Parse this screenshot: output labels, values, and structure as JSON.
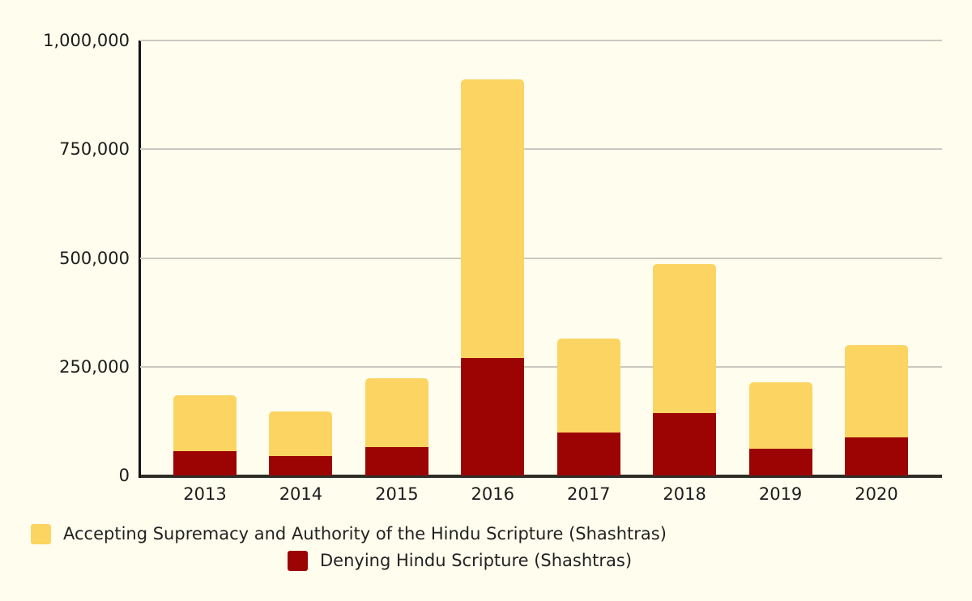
{
  "page": {
    "background_color": "#FFFDEE",
    "text_color": "#1C1C1C",
    "gridline_color": "#C9C9C1",
    "axis_line_color": "#141414",
    "baseline_color": "#2E2E26"
  },
  "chart_data": {
    "type": "bar",
    "stacked": true,
    "title": "",
    "xlabel": "",
    "ylabel": "",
    "categories": [
      "2013",
      "2014",
      "2015",
      "2016",
      "2017",
      "2018",
      "2019",
      "2020"
    ],
    "series": [
      {
        "name": "Accepting Supremacy and Authority of the Hindu Scripture (Shashtras)",
        "color": "#FCD462",
        "values": [
          130000,
          103000,
          158000,
          640000,
          217000,
          342000,
          152000,
          211000
        ]
      },
      {
        "name": "Denying Hindu Scripture (Shashtras)",
        "color": "#9C0404",
        "values": [
          55000,
          44000,
          66000,
          270000,
          98000,
          144000,
          62000,
          88000
        ]
      }
    ],
    "stack_totals": [
      185000,
      147000,
      224000,
      910000,
      315000,
      486000,
      214000,
      299000
    ],
    "ylim": [
      0,
      1000000
    ],
    "yticks": [
      "1,000,000",
      "750,000",
      "500,000",
      "250,000",
      "0"
    ],
    "ytick_values": [
      1000000,
      750000,
      500000,
      250000,
      0
    ],
    "grid": true,
    "legend_position": "bottom"
  }
}
